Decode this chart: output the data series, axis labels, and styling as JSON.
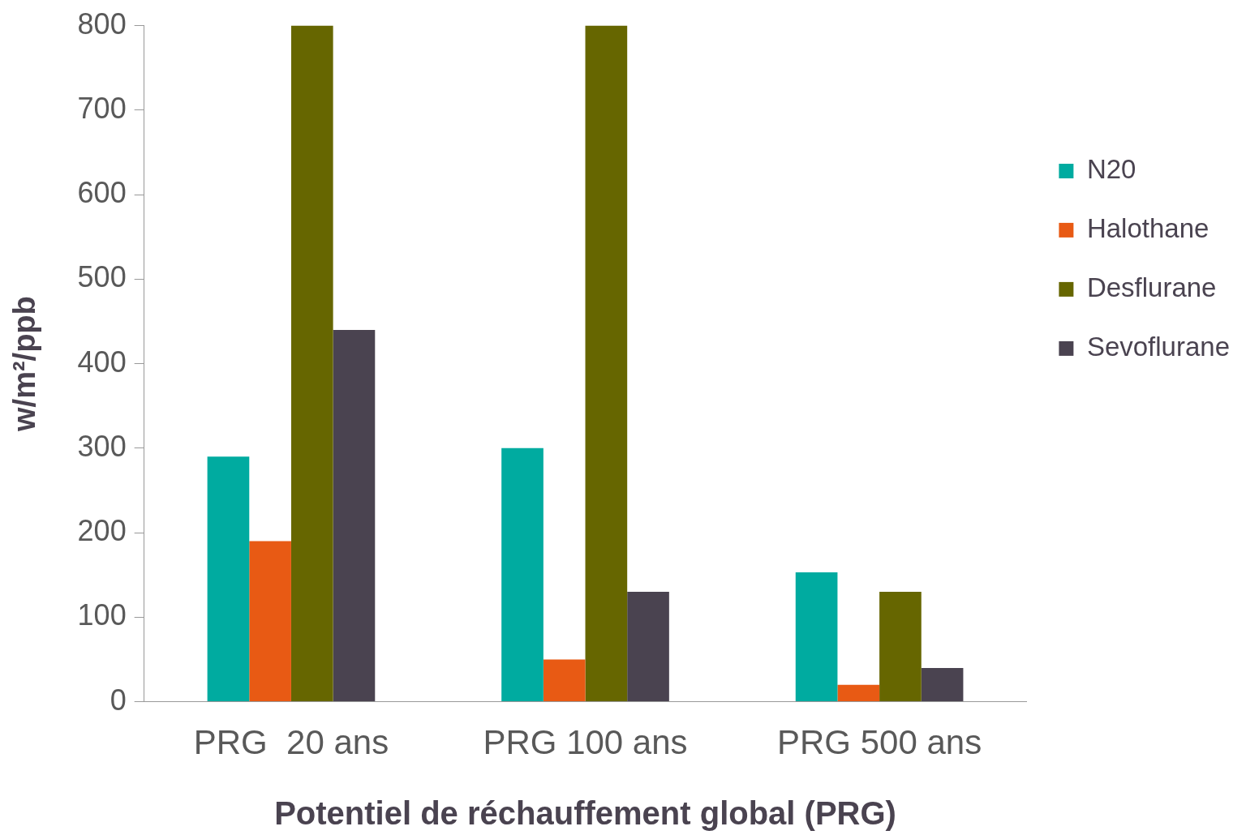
{
  "chart_data": {
    "type": "bar",
    "xlabel": "Potentiel de réchauffement global (PRG)",
    "ylabel": "w/m²/ppb",
    "categories": [
      "PRG  20 ans",
      "PRG 100 ans",
      "PRG 500 ans"
    ],
    "series": [
      {
        "name": "N20",
        "color": "#00aba0",
        "values": [
          290,
          300,
          153
        ]
      },
      {
        "name": "Halothane",
        "color": "#e85a14",
        "values": [
          190,
          50,
          20
        ]
      },
      {
        "name": "Desflurane",
        "color": "#666600",
        "values": [
          800,
          800,
          130
        ]
      },
      {
        "name": "Sevoflurane",
        "color": "#4a4350",
        "values": [
          440,
          130,
          40
        ]
      }
    ],
    "ylim": [
      0,
      800
    ],
    "yticks": [
      0,
      100,
      200,
      300,
      400,
      500,
      600,
      700,
      800
    ],
    "grid": false,
    "legend": "right"
  }
}
